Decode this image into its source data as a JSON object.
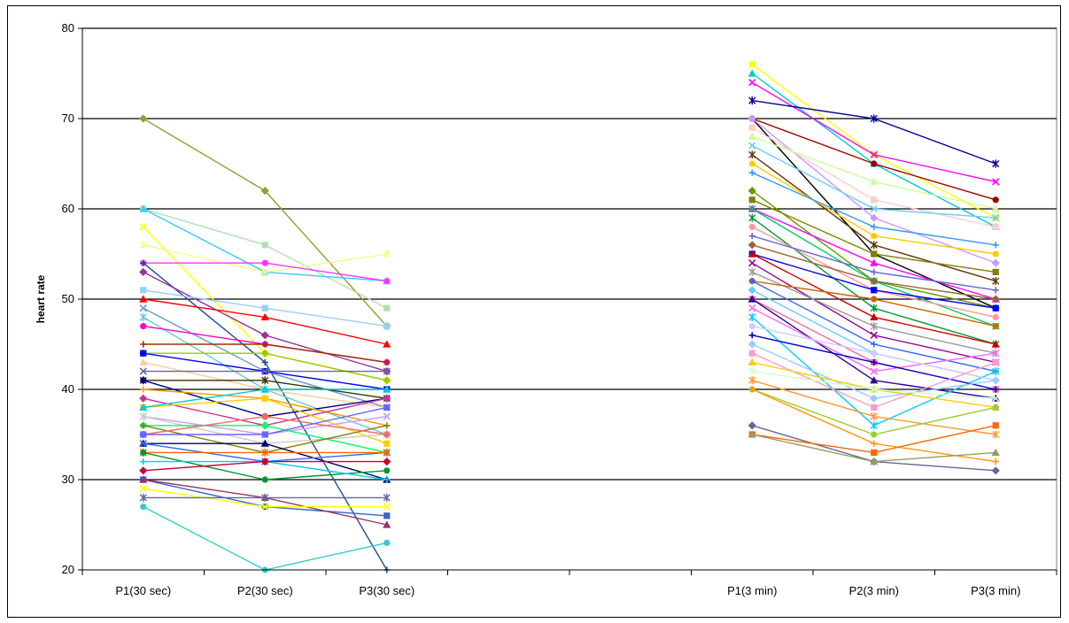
{
  "chart_data": {
    "type": "line",
    "title": "",
    "xlabel": "",
    "ylabel": "heart rate",
    "categories": [
      "P1(30 sec)",
      "P2(30 sec)",
      "P3(30 sec)",
      "",
      "",
      "P1(3 min)",
      "P2(3 min)",
      "P3(3 min)"
    ],
    "ylim": [
      20,
      80
    ],
    "yticks": [
      20,
      30,
      40,
      50,
      60,
      70,
      80
    ],
    "grid": "horizontal",
    "legend": "none",
    "groups": [
      {
        "name": "30 sec",
        "category_index": [
          0,
          1,
          2
        ],
        "series": [
          {
            "values": [
              70,
              62,
              47
            ],
            "color": "#9b9b30"
          },
          {
            "values": [
              60,
              56,
              49
            ],
            "color": "#b0e0b0"
          },
          {
            "values": [
              60,
              53,
              52
            ],
            "color": "#33ccff"
          },
          {
            "values": [
              58,
              44,
              41
            ],
            "color": "#ffff00"
          },
          {
            "values": [
              56,
              53,
              55
            ],
            "color": "#eeff88"
          },
          {
            "values": [
              54,
              54,
              52
            ],
            "color": "#ff33ff"
          },
          {
            "values": [
              54,
              43,
              20
            ],
            "color": "#1f4f8f"
          },
          {
            "values": [
              53,
              46,
              42
            ],
            "color": "#993399"
          },
          {
            "values": [
              51,
              49,
              47
            ],
            "color": "#99ccff"
          },
          {
            "values": [
              50,
              48,
              45
            ],
            "color": "#ff0000"
          },
          {
            "values": [
              49,
              42,
              38
            ],
            "color": "#6699cc"
          },
          {
            "values": [
              48,
              40,
              35
            ],
            "color": "#66cccc"
          },
          {
            "values": [
              47,
              45,
              43
            ],
            "color": "#ff00cc"
          },
          {
            "values": [
              45,
              45,
              43
            ],
            "color": "#993300"
          },
          {
            "values": [
              44,
              44,
              41
            ],
            "color": "#99cc00"
          },
          {
            "values": [
              44,
              42,
              40
            ],
            "color": "#0000ff"
          },
          {
            "values": [
              43,
              40,
              38
            ],
            "color": "#ffcc99"
          },
          {
            "values": [
              42,
              42,
              42
            ],
            "color": "#666699"
          },
          {
            "values": [
              41,
              41,
              39
            ],
            "color": "#333300"
          },
          {
            "values": [
              41,
              37,
              39
            ],
            "color": "#000080"
          },
          {
            "values": [
              40,
              39,
              36
            ],
            "color": "#ff9900"
          },
          {
            "values": [
              39,
              36,
              39
            ],
            "color": "#cc3399"
          },
          {
            "values": [
              38,
              39,
              34
            ],
            "color": "#ffcc00"
          },
          {
            "values": [
              38,
              40,
              40
            ],
            "color": "#00cccc"
          },
          {
            "values": [
              37,
              35,
              37
            ],
            "color": "#cc99ff"
          },
          {
            "values": [
              37,
              34,
              35
            ],
            "color": "#cccccc"
          },
          {
            "values": [
              36,
              36,
              33
            ],
            "color": "#00ff66"
          },
          {
            "values": [
              36,
              33,
              36
            ],
            "color": "#808000"
          },
          {
            "values": [
              35,
              37,
              35
            ],
            "color": "#ff6666"
          },
          {
            "values": [
              35,
              35,
              38
            ],
            "color": "#6666ff"
          },
          {
            "values": [
              34,
              34,
              30
            ],
            "color": "#000066"
          },
          {
            "values": [
              34,
              32,
              33
            ],
            "color": "#3366ff"
          },
          {
            "values": [
              33,
              33,
              33
            ],
            "color": "#ff6600"
          },
          {
            "values": [
              33,
              30,
              31
            ],
            "color": "#009933"
          },
          {
            "values": [
              32,
              32,
              30
            ],
            "color": "#00ccff"
          },
          {
            "values": [
              31,
              32,
              32
            ],
            "color": "#cc0033"
          },
          {
            "values": [
              30,
              27,
              26
            ],
            "color": "#3366cc"
          },
          {
            "values": [
              30,
              28,
              25
            ],
            "color": "#993366"
          },
          {
            "values": [
              29,
              27,
              27
            ],
            "color": "#ffff00"
          },
          {
            "values": [
              28,
              28,
              28
            ],
            "color": "#666699"
          },
          {
            "values": [
              27,
              20,
              23
            ],
            "color": "#33cccc"
          }
        ]
      },
      {
        "name": "3 min",
        "category_index": [
          5,
          6,
          7
        ],
        "series": [
          {
            "values": [
              76,
              66,
              59
            ],
            "color": "#ffff00"
          },
          {
            "values": [
              75,
              65,
              58
            ],
            "color": "#00cccc"
          },
          {
            "values": [
              74,
              66,
              63
            ],
            "color": "#ff00ff"
          },
          {
            "values": [
              72,
              70,
              65
            ],
            "color": "#000099"
          },
          {
            "values": [
              70,
              65,
              61
            ],
            "color": "#990000"
          },
          {
            "values": [
              70,
              55,
              49
            ],
            "color": "#000000"
          },
          {
            "values": [
              70,
              59,
              54
            ],
            "color": "#cc99ff"
          },
          {
            "values": [
              69,
              61,
              58
            ],
            "color": "#ffcccc"
          },
          {
            "values": [
              68,
              63,
              60
            ],
            "color": "#ccff99"
          },
          {
            "values": [
              67,
              60,
              59
            ],
            "color": "#66ccff"
          },
          {
            "values": [
              66,
              56,
              52
            ],
            "color": "#663300"
          },
          {
            "values": [
              65,
              57,
              55
            ],
            "color": "#ffcc00"
          },
          {
            "values": [
              64,
              58,
              56
            ],
            "color": "#3399ff"
          },
          {
            "values": [
              62,
              52,
              49
            ],
            "color": "#669900"
          },
          {
            "values": [
              61,
              55,
              53
            ],
            "color": "#808000"
          },
          {
            "values": [
              60,
              54,
              50
            ],
            "color": "#ff00ff"
          },
          {
            "values": [
              60,
              52,
              47
            ],
            "color": "#00cc66"
          },
          {
            "values": [
              59,
              49,
              45
            ],
            "color": "#009933"
          },
          {
            "values": [
              58,
              51,
              48
            ],
            "color": "#ff9999"
          },
          {
            "values": [
              57,
              53,
              51
            ],
            "color": "#6666cc"
          },
          {
            "values": [
              56,
              52,
              50
            ],
            "color": "#996633"
          },
          {
            "values": [
              55,
              51,
              49
            ],
            "color": "#0000ff"
          },
          {
            "values": [
              55,
              48,
              45
            ],
            "color": "#cc0000"
          },
          {
            "values": [
              54,
              46,
              43
            ],
            "color": "#990099"
          },
          {
            "values": [
              53,
              47,
              44
            ],
            "color": "#999999"
          },
          {
            "values": [
              52,
              50,
              47
            ],
            "color": "#cc6600"
          },
          {
            "values": [
              52,
              45,
              42
            ],
            "color": "#3366ff"
          },
          {
            "values": [
              51,
              44,
              41
            ],
            "color": "#66ccff"
          },
          {
            "values": [
              50,
              43,
              40
            ],
            "color": "#ff6699"
          },
          {
            "values": [
              50,
              41,
              39
            ],
            "color": "#330099"
          },
          {
            "values": [
              49,
              42,
              44
            ],
            "color": "#ff66ff"
          },
          {
            "values": [
              48,
              36,
              42
            ],
            "color": "#00ccff"
          },
          {
            "values": [
              47,
              44,
              41
            ],
            "color": "#ccccff"
          },
          {
            "values": [
              46,
              43,
              40
            ],
            "color": "#0000cc"
          },
          {
            "values": [
              45,
              39,
              41
            ],
            "color": "#99ccff"
          },
          {
            "values": [
              44,
              38,
              43
            ],
            "color": "#ff99cc"
          },
          {
            "values": [
              43,
              40,
              38
            ],
            "color": "#ffcc00"
          },
          {
            "values": [
              42,
              40,
              39
            ],
            "color": "#ccffcc"
          },
          {
            "values": [
              41,
              37,
              35
            ],
            "color": "#ff9933"
          },
          {
            "values": [
              40,
              35,
              38
            ],
            "color": "#99cc33"
          },
          {
            "values": [
              40,
              34,
              32
            ],
            "color": "#ff9900"
          },
          {
            "values": [
              36,
              32,
              31
            ],
            "color": "#666699"
          },
          {
            "values": [
              35,
              33,
              36
            ],
            "color": "#ff6600"
          },
          {
            "values": [
              35,
              32,
              33
            ],
            "color": "#999966"
          }
        ]
      }
    ]
  }
}
